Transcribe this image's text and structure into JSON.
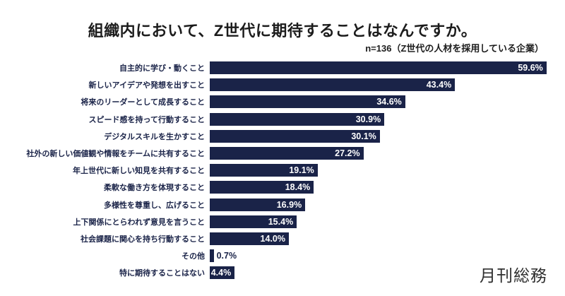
{
  "header": {
    "title": "組織内において、Z世代に期待することはなんですか。",
    "subtitle": "n=136（Z世代の人材を採用している企業）"
  },
  "chart_data": {
    "type": "bar",
    "orientation": "horizontal",
    "title": "組織内において、Z世代に期待することはなんですか。",
    "subtitle": "n=136（Z世代の人材を採用している企業）",
    "xlabel": "",
    "ylabel": "",
    "unit": "%",
    "xlim": [
      0,
      62.5
    ],
    "grid": false,
    "legend": false,
    "categories": [
      "自主的に学び・動くこと",
      "新しいアイデアや発想を出すこと",
      "将来のリーダーとして成長すること",
      "スピード感を持って行動すること",
      "デジタルスキルを生かすこと",
      "社外の新しい価値観や情報をチームに共有すること",
      "年上世代に新しい知見を共有すること",
      "柔軟な働き方を体現すること",
      "多様性を尊重し、広げること",
      "上下関係にとらわれず意見を言うこと",
      "社会課題に関心を持ち行動すること",
      "その他",
      "特に期待することはない"
    ],
    "values": [
      59.6,
      43.4,
      34.6,
      30.9,
      30.1,
      27.2,
      19.1,
      18.4,
      16.9,
      15.4,
      14.0,
      0.7,
      4.4
    ],
    "value_labels": [
      "59.6%",
      "43.4%",
      "34.6%",
      "30.9%",
      "30.1%",
      "27.2%",
      "19.1%",
      "18.4%",
      "16.9%",
      "15.4%",
      "14.0%",
      "0.7%",
      "4.4%"
    ]
  },
  "colors": {
    "bar": "#1a2348",
    "label_text": "#1a2348",
    "value_inside_text": "#ffffff",
    "value_outside_text": "#1a2348",
    "title_text": "#1c1c1c",
    "background": "#ffffff",
    "logo_text": "#2f2f2f"
  },
  "footer": {
    "logo_text": "月刊総務"
  }
}
